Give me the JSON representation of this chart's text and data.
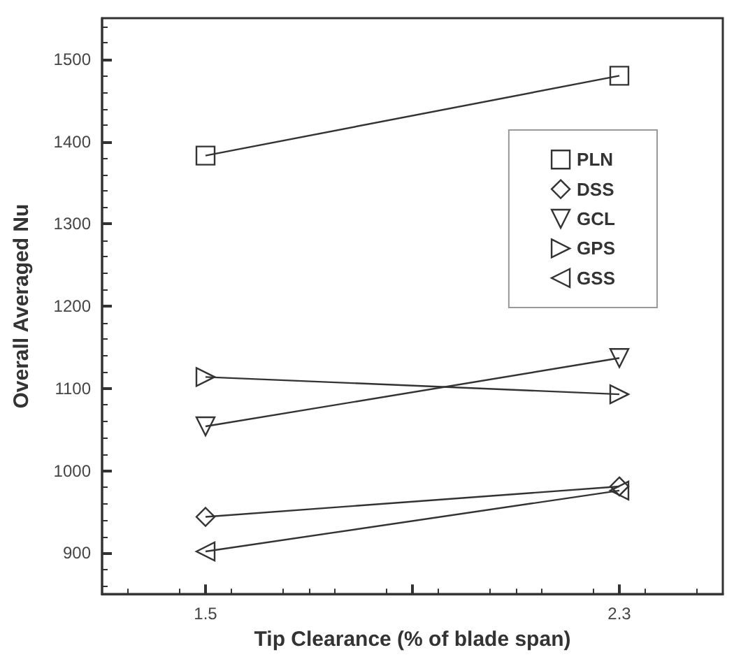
{
  "chart_data": {
    "type": "line",
    "xlabel": "Tip Clearance (% of blade span)",
    "ylabel": "Overall Averaged Nu",
    "x": [
      1.5,
      2.3
    ],
    "series": [
      {
        "name": "PLN",
        "color": "#333333",
        "marker": "square",
        "values": [
          1383,
          1480
        ]
      },
      {
        "name": "DSS",
        "color": "#333333",
        "marker": "diamond",
        "values": [
          944,
          981
        ]
      },
      {
        "name": "GCL",
        "color": "#333333",
        "marker": "triangle-down",
        "values": [
          1054,
          1137
        ]
      },
      {
        "name": "GPS",
        "color": "#333333",
        "marker": "triangle-right",
        "values": [
          1114,
          1093
        ]
      },
      {
        "name": "GSS",
        "color": "#333333",
        "marker": "triangle-left",
        "values": [
          902,
          976
        ]
      }
    ],
    "xlim": [
      1.3,
      2.5
    ],
    "xticks": [
      1.5,
      {
        "value": 1.9,
        "label": null
      },
      2.3
    ],
    "ylim": [
      850,
      1550
    ],
    "yticks": [
      900,
      1000,
      1100,
      1200,
      1300,
      1400,
      1500
    ],
    "grid": false,
    "legend": "top right",
    "line_style": "solid"
  }
}
